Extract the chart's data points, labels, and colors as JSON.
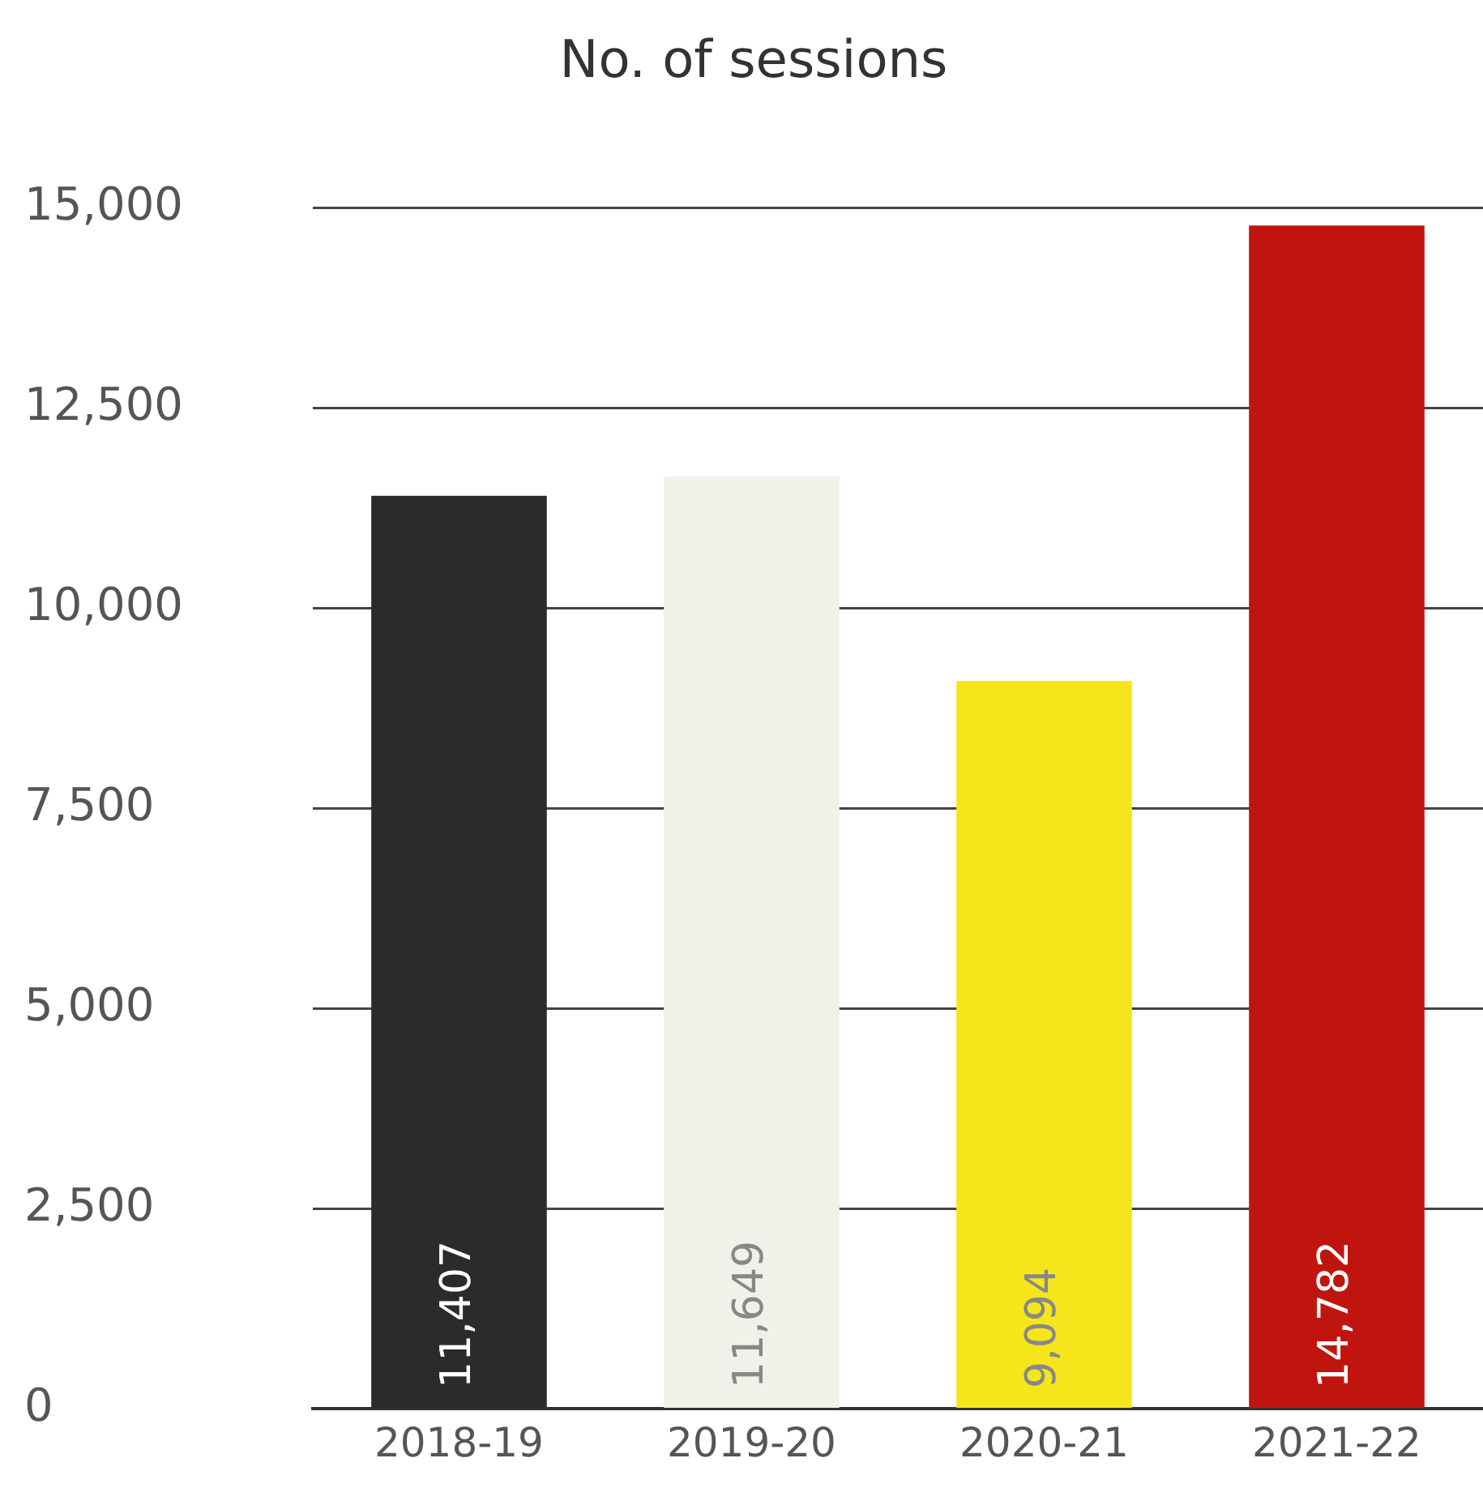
{
  "chart_data": {
    "type": "bar",
    "title": "No. of sessions",
    "categories": [
      "2018-19",
      "2019-20",
      "2020-21",
      "2021-22"
    ],
    "values": [
      11407,
      11649,
      9094,
      14782
    ],
    "colors": [
      "#2b2b2b",
      "#eef2e8",
      "#f5e61c",
      "#c0150f"
    ],
    "value_labels": [
      "11,407",
      "11,649",
      "9,094",
      "14,782"
    ],
    "ylim": [
      0,
      15000
    ],
    "yticks": [
      0,
      {
        "value": 2500,
        "label": "2,500"
      },
      {
        "value": 5000,
        "label": "5,000"
      },
      {
        "value": 7500,
        "label": "7,500"
      },
      {
        "value": 10000,
        "label": "10,000"
      },
      {
        "value": 12500,
        "label": "12,500"
      },
      {
        "value": 15000,
        "label": "15,000"
      }
    ],
    "grid": "y"
  }
}
